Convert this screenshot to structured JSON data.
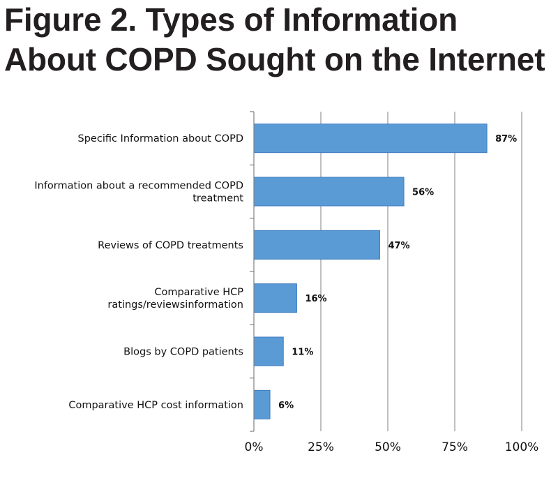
{
  "title_lines": [
    "Figure 2.  Types of Information",
    "About COPD Sought on the Internet"
  ],
  "chart_data": {
    "type": "bar",
    "orientation": "horizontal",
    "categories": [
      [
        "Specific Information about COPD"
      ],
      [
        "Information about a recommended COPD",
        "treatment"
      ],
      [
        "Reviews of COPD treatments"
      ],
      [
        "Comparative HCP",
        "ratings/reviewsinformation"
      ],
      [
        "Blogs by COPD patients"
      ],
      [
        "Comparative HCP cost information"
      ]
    ],
    "values": [
      87,
      56,
      47,
      16,
      11,
      6
    ],
    "data_labels": [
      "87%",
      "56%",
      "47%",
      "16%",
      "11%",
      "6%"
    ],
    "xlim": [
      0,
      100
    ],
    "xticks": [
      0,
      25,
      50,
      75,
      100
    ],
    "xtick_labels": [
      "0%",
      "25%",
      "50%",
      "75%",
      "100%"
    ],
    "grid": "vertical",
    "legend": "none",
    "bar_color": "#5b9bd5",
    "bar_edge_color": "#3d7cc0"
  }
}
